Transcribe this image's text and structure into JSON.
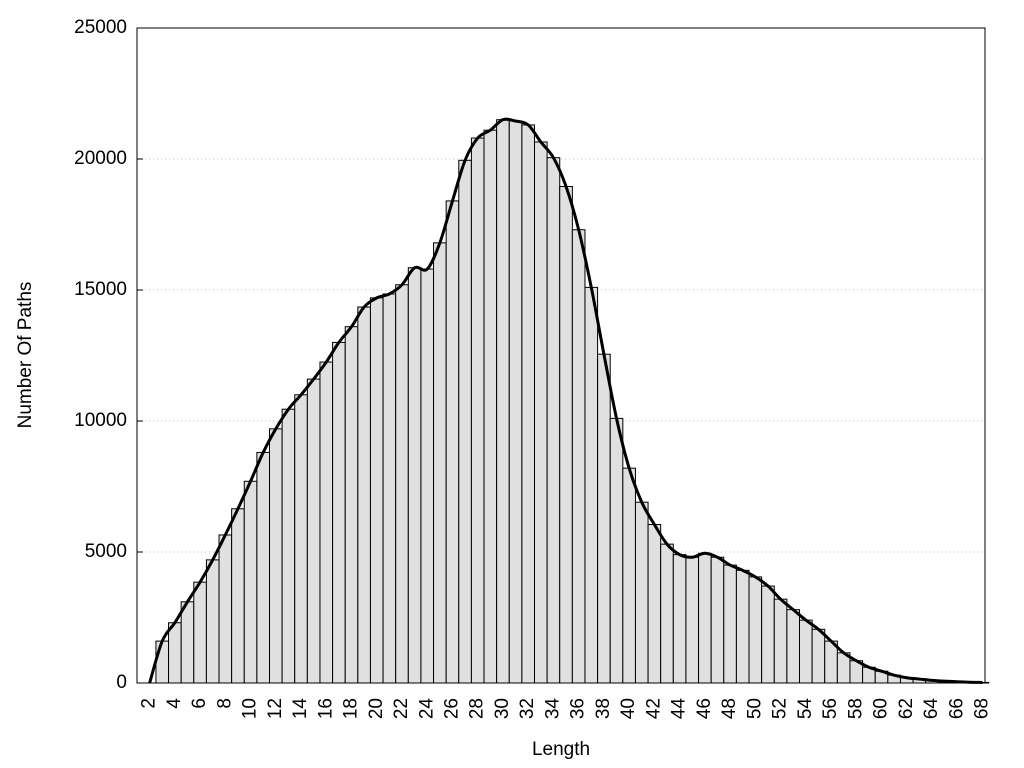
{
  "chart_data": {
    "type": "bar",
    "xlabel": "Length",
    "ylabel": "Number Of Paths",
    "categories": [
      "2",
      null,
      "4",
      null,
      "6",
      null,
      "8",
      null,
      "10",
      null,
      "12",
      null,
      "14",
      null,
      "16",
      null,
      "18",
      null,
      "20",
      null,
      "22",
      null,
      "24",
      null,
      "26",
      null,
      "28",
      null,
      "30",
      null,
      "32",
      null,
      "34",
      null,
      "36",
      null,
      "38",
      null,
      "40",
      null,
      "42",
      null,
      "44",
      null,
      "46",
      null,
      "48",
      null,
      "50",
      null,
      "52",
      null,
      "54",
      null,
      "56",
      null,
      "58",
      null,
      "60",
      null,
      "62",
      null,
      "64",
      null,
      "66",
      null,
      "68"
    ],
    "values": [
      0,
      1600,
      2300,
      3100,
      3850,
      4700,
      5650,
      6650,
      7700,
      8800,
      9700,
      10450,
      11000,
      11600,
      12250,
      13000,
      13600,
      14350,
      14700,
      14850,
      15200,
      15850,
      15800,
      16800,
      18400,
      19950,
      20800,
      21100,
      21500,
      21450,
      21300,
      20650,
      20050,
      18950,
      17300,
      15100,
      12550,
      10100,
      8200,
      6900,
      6050,
      5300,
      4900,
      4800,
      4950,
      4800,
      4500,
      4300,
      4050,
      3700,
      3200,
      2800,
      2400,
      2050,
      1600,
      1150,
      850,
      600,
      450,
      300,
      200,
      150,
      100,
      70,
      50,
      30,
      20
    ],
    "color": "#e0e0e0",
    "smooth_line": true,
    "line_color": "#000000",
    "ylim": [
      0,
      25000
    ],
    "yticks": [
      0,
      5000,
      10000,
      15000,
      20000,
      25000
    ],
    "grid": true
  }
}
